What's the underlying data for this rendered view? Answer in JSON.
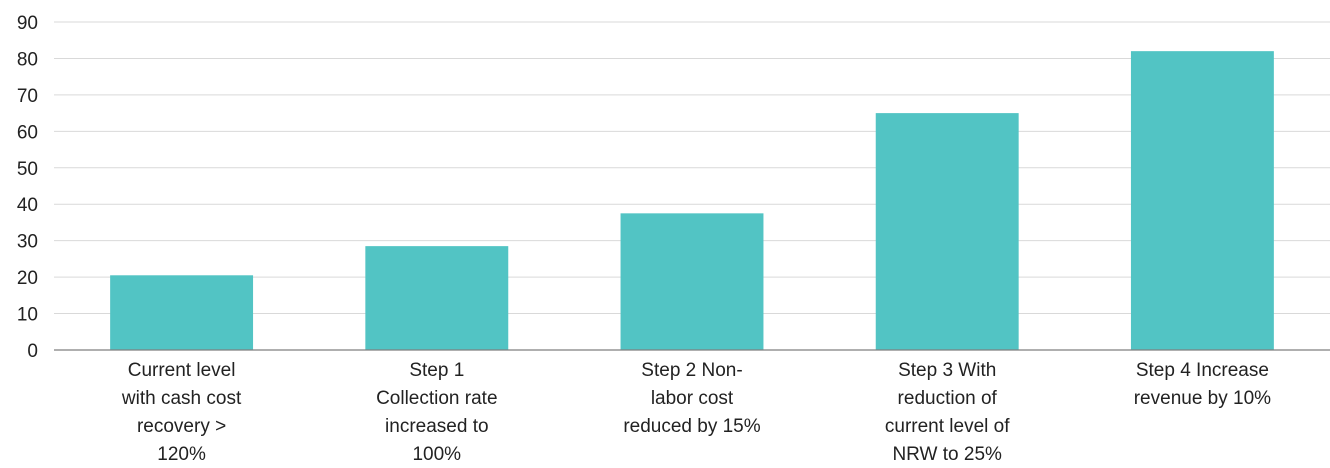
{
  "chart_data": {
    "type": "bar",
    "categories": [
      [
        "Current level",
        "with cash cost",
        "recovery >",
        "120%"
      ],
      [
        "Step 1",
        "Collection rate",
        "increased to",
        "100%"
      ],
      [
        "Step 2 Non-",
        "labor cost",
        "reduced by 15%"
      ],
      [
        "Step 3 With",
        "reduction of",
        "current level of",
        "NRW to 25%"
      ],
      [
        "Step 4 Increase",
        "revenue by 10%"
      ]
    ],
    "values": [
      20.5,
      28.5,
      37.5,
      65,
      82
    ],
    "ylim": [
      0,
      90
    ],
    "yticks": [
      0,
      10,
      20,
      30,
      40,
      50,
      60,
      70,
      80,
      90
    ],
    "grid": true,
    "bar_color": "#52c4c4",
    "title": "",
    "xlabel": "",
    "ylabel": ""
  }
}
